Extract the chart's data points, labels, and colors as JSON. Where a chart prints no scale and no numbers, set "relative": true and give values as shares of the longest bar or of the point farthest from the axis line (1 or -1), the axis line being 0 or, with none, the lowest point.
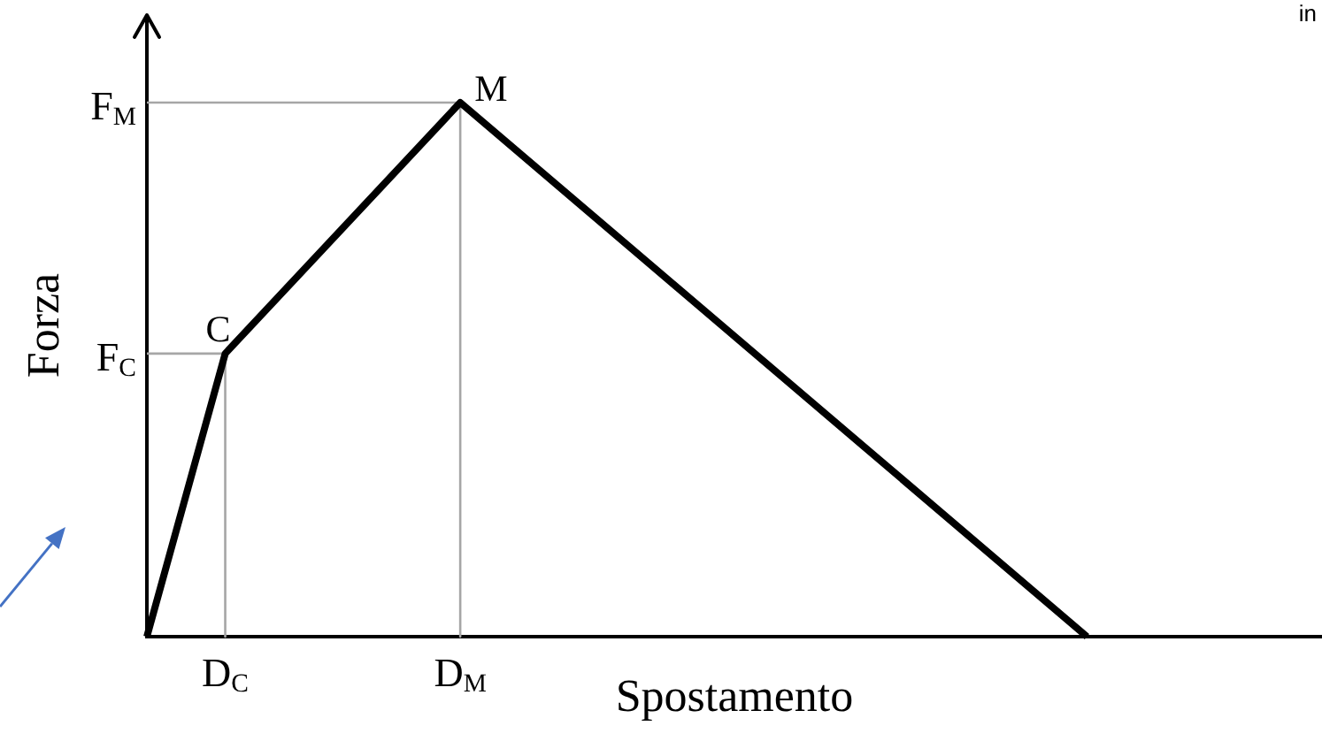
{
  "chart_data": {
    "type": "line",
    "xlabel": "Spostamento",
    "ylabel": "Forza",
    "relative": true,
    "marker": "none",
    "categories": [
      null,
      "D$_{C}$",
      null,
      null,
      "D$_{M}$",
      null,
      null,
      null,
      null,
      null,
      null,
      null,
      null,
      null,
      null,
      null
    ],
    "series": [
      {
        "color": "#000000",
        "values": [
          0,
          0.53,
          null,
          null,
          1,
          null,
          null,
          null,
          null,
          null,
          null,
          null,
          0,
          null,
          null,
          null
        ]
      },
      {
        "name": "F$_{C}$",
        "color": "#a6a6a6",
        "values": [
          0.53,
          0.53,
          null,
          null,
          null,
          null,
          null,
          null,
          null,
          null,
          null,
          null,
          null,
          null,
          null,
          null
        ]
      },
      {
        "name": "F$_{M}$",
        "color": "#a6a6a6",
        "values": [
          1,
          1,
          1,
          1,
          1,
          null,
          null,
          null,
          null,
          null,
          null,
          null,
          null,
          null,
          null,
          null
        ]
      },
      {
        "color": "#a6a6a6",
        "x": [
          "D$_{C}$",
          "D$_{C}$"
        ],
        "values": [
          0.53,
          0
        ]
      },
      {
        "color": "#a6a6a6",
        "x": [
          "D$_{M}$",
          "D$_{M}$"
        ],
        "values": [
          1,
          0
        ]
      }
    ],
    "annotations": [
      {
        "text": "C",
        "x": "D$_{C}$",
        "y": 0.53
      },
      {
        "text": "M",
        "x": "D$_{M}$",
        "y": 1
      },
      "in"
    ]
  }
}
